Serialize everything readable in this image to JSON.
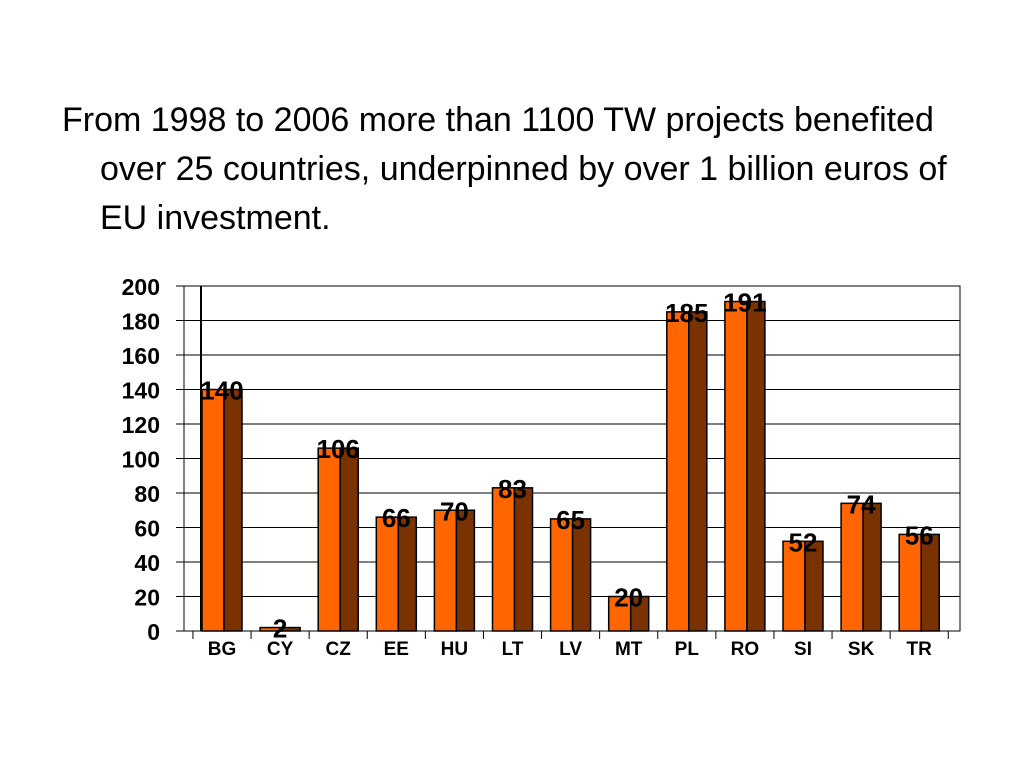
{
  "slide": {
    "text": "From 1998 to 2006 more than 1100 TW projects benefited over 25 countries, underpinned by over 1 billion euros of EU investment."
  },
  "chart_data": {
    "type": "bar",
    "categories": [
      "BG",
      "CY",
      "CZ",
      "EE",
      "HU",
      "LT",
      "LV",
      "MT",
      "PL",
      "RO",
      "SI",
      "SK",
      "TR"
    ],
    "values": [
      140,
      2,
      106,
      66,
      70,
      83,
      65,
      20,
      185,
      191,
      52,
      74,
      56
    ],
    "data_labels": [
      "140",
      "2",
      "106",
      "66",
      "70",
      "83",
      "65",
      "20",
      "185",
      "191",
      "52",
      "74",
      "56"
    ],
    "title": "",
    "xlabel": "",
    "ylabel": "",
    "ylim": [
      0,
      200
    ],
    "yticks": [
      0,
      20,
      40,
      60,
      80,
      100,
      120,
      140,
      160,
      180,
      200
    ],
    "grid": true,
    "legend": "none",
    "colors": {
      "bar_front": "#FF6600",
      "bar_side": "#7A3300",
      "gridline": "#000000"
    }
  }
}
